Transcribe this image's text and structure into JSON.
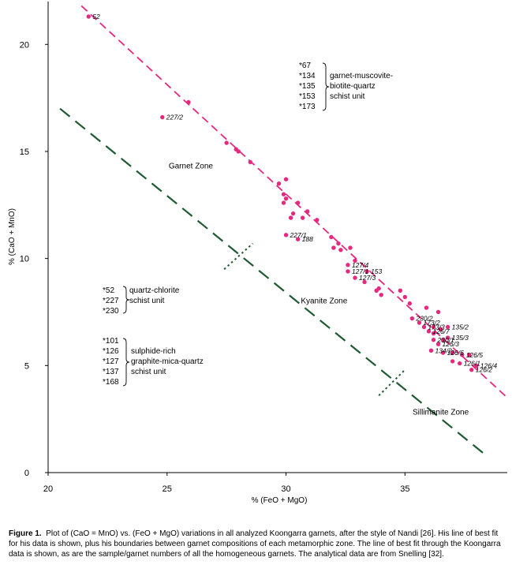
{
  "chart_data": {
    "type": "scatter",
    "xlabel": "% (FeO + MgO)",
    "ylabel": "% (CaO + MnO)",
    "xlim": [
      20,
      39.3
    ],
    "ylim": [
      0,
      22
    ],
    "x_ticks": [
      20,
      25,
      30,
      35
    ],
    "y_ticks": [
      0,
      5,
      10,
      15,
      20
    ],
    "grid": false,
    "colors": {
      "points": "#e8287f",
      "fit_line": "#e8287f",
      "nandi_lines": "#1f5a32"
    },
    "points": [
      {
        "x": 21.7,
        "y": 21.3
      },
      {
        "x": 24.8,
        "y": 16.6
      },
      {
        "x": 25.9,
        "y": 17.3
      },
      {
        "x": 27.5,
        "y": 15.4
      },
      {
        "x": 27.9,
        "y": 15.1
      },
      {
        "x": 28.0,
        "y": 15.0
      },
      {
        "x": 28.5,
        "y": 14.5
      },
      {
        "x": 29.7,
        "y": 13.5
      },
      {
        "x": 30.0,
        "y": 13.7
      },
      {
        "x": 29.9,
        "y": 13.0
      },
      {
        "x": 30.0,
        "y": 12.8
      },
      {
        "x": 29.9,
        "y": 12.6
      },
      {
        "x": 30.5,
        "y": 12.6
      },
      {
        "x": 30.3,
        "y": 12.1
      },
      {
        "x": 30.9,
        "y": 12.2
      },
      {
        "x": 30.2,
        "y": 11.9
      },
      {
        "x": 30.7,
        "y": 11.9
      },
      {
        "x": 31.3,
        "y": 11.8
      },
      {
        "x": 30.0,
        "y": 11.1
      },
      {
        "x": 30.5,
        "y": 10.9
      },
      {
        "x": 31.9,
        "y": 11.0
      },
      {
        "x": 32.2,
        "y": 10.7
      },
      {
        "x": 32.7,
        "y": 10.5
      },
      {
        "x": 32.0,
        "y": 10.5
      },
      {
        "x": 32.3,
        "y": 10.4
      },
      {
        "x": 32.6,
        "y": 9.7
      },
      {
        "x": 32.9,
        "y": 9.9
      },
      {
        "x": 32.6,
        "y": 9.4
      },
      {
        "x": 32.9,
        "y": 9.1
      },
      {
        "x": 33.4,
        "y": 9.4
      },
      {
        "x": 33.3,
        "y": 8.9
      },
      {
        "x": 33.8,
        "y": 8.5
      },
      {
        "x": 34.0,
        "y": 8.3
      },
      {
        "x": 33.9,
        "y": 8.6
      },
      {
        "x": 34.8,
        "y": 8.5
      },
      {
        "x": 35.0,
        "y": 8.2
      },
      {
        "x": 35.2,
        "y": 7.9
      },
      {
        "x": 35.9,
        "y": 7.7
      },
      {
        "x": 35.3,
        "y": 7.2
      },
      {
        "x": 35.6,
        "y": 7.0
      },
      {
        "x": 36.4,
        "y": 7.5
      },
      {
        "x": 35.8,
        "y": 6.8
      },
      {
        "x": 36.0,
        "y": 6.6
      },
      {
        "x": 36.2,
        "y": 6.8
      },
      {
        "x": 36.2,
        "y": 6.5
      },
      {
        "x": 36.5,
        "y": 6.7
      },
      {
        "x": 36.8,
        "y": 6.8
      },
      {
        "x": 36.2,
        "y": 6.2
      },
      {
        "x": 36.4,
        "y": 6.0
      },
      {
        "x": 36.6,
        "y": 6.2
      },
      {
        "x": 36.8,
        "y": 6.3
      },
      {
        "x": 36.1,
        "y": 5.7
      },
      {
        "x": 36.6,
        "y": 5.6
      },
      {
        "x": 37.0,
        "y": 5.6
      },
      {
        "x": 37.4,
        "y": 5.5
      },
      {
        "x": 37.7,
        "y": 5.5
      },
      {
        "x": 37.0,
        "y": 5.2
      },
      {
        "x": 37.3,
        "y": 5.1
      },
      {
        "x": 37.8,
        "y": 4.8
      },
      {
        "x": 38.0,
        "y": 5.0
      }
    ],
    "point_labels": [
      {
        "text": "52",
        "x": 21.7,
        "y": 21.3
      },
      {
        "text": "227/2",
        "x": 24.8,
        "y": 16.6
      },
      {
        "text": "227/1",
        "x": 30.0,
        "y": 11.1
      },
      {
        "text": "188",
        "x": 30.5,
        "y": 10.9
      },
      {
        "text": "127/4",
        "x": 32.6,
        "y": 9.7
      },
      {
        "text": "127/1",
        "x": 32.6,
        "y": 9.4
      },
      {
        "text": "153",
        "x": 33.4,
        "y": 9.4
      },
      {
        "text": "127/3",
        "x": 32.9,
        "y": 9.1
      },
      {
        "text": "230/2",
        "x": 35.3,
        "y": 7.2
      },
      {
        "text": "173/2",
        "x": 35.6,
        "y": 7.0
      },
      {
        "text": "173/3",
        "x": 35.8,
        "y": 6.8
      },
      {
        "text": "126/7",
        "x": 36.0,
        "y": 6.6
      },
      {
        "text": "230/1",
        "x": 36.2,
        "y": 6.2
      },
      {
        "text": "135/2",
        "x": 36.8,
        "y": 6.8
      },
      {
        "text": "135/3",
        "x": 36.8,
        "y": 6.3
      },
      {
        "text": "126/3",
        "x": 36.4,
        "y": 6.0
      },
      {
        "text": "134/2",
        "x": 36.1,
        "y": 5.7
      },
      {
        "text": "126/6",
        "x": 36.6,
        "y": 5.6
      },
      {
        "text": "126/5",
        "x": 37.4,
        "y": 5.5
      },
      {
        "text": "126/4",
        "x": 38.0,
        "y": 5.0
      },
      {
        "text": "126/1",
        "x": 37.3,
        "y": 5.1
      },
      {
        "text": "126/2",
        "x": 37.8,
        "y": 4.8
      }
    ],
    "fit_line": {
      "x": [
        21.4,
        39.3
      ],
      "y": [
        21.8,
        3.5
      ]
    },
    "nandi_line": {
      "x": [
        20.5,
        38.3
      ],
      "y": [
        17.0,
        0.9
      ]
    },
    "zone_boundaries": [
      {
        "x": [
          27.4,
          28.6
        ],
        "y": [
          9.5,
          10.7
        ]
      },
      {
        "x": [
          33.9,
          35.0
        ],
        "y": [
          3.6,
          4.8
        ]
      }
    ],
    "zone_labels": [
      {
        "text": "Garnet Zone",
        "x": 26.0,
        "y": 14.2
      },
      {
        "text": "Kyanite Zone",
        "x": 31.6,
        "y": 7.9
      },
      {
        "text": "Sillimanite Zone",
        "x": 36.5,
        "y": 2.7
      }
    ],
    "sample_groups": [
      {
        "samples": [
          "*67",
          "*134",
          "*135",
          "*153",
          "*173"
        ],
        "description": [
          "garnet-muscovite-",
          "biotite-quartz",
          "schist unit"
        ]
      },
      {
        "samples": [
          "*52",
          "*227",
          "*230"
        ],
        "description": [
          "quartz-chlorite",
          "schist unit"
        ]
      },
      {
        "samples": [
          "*101",
          "*126",
          "*127",
          "*137",
          "*168"
        ],
        "description": [
          "sulphide-rich",
          "graphite-mica-quartz",
          "schist unit"
        ]
      }
    ]
  },
  "caption": {
    "bold": "Figure 1.",
    "text": "Plot of (CaO = MnO) vs. (FeO + MgO) variations in all analyzed Koongarra garnets, after the style of Nandi [26].  His line of best fit for his data is shown, plus his boundaries between garnet compositions of each metamorphic zone.  The line of best fit through the Koongarra data is shown, as are the sample/garnet numbers of all the homogeneous garnets.  The analytical data are from Snelling [32]."
  }
}
